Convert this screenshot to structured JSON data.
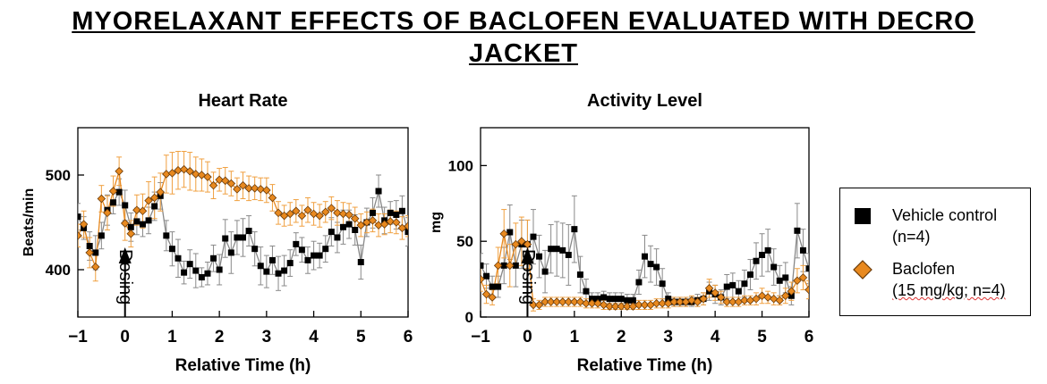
{
  "title_lines": [
    "MYORELAXANT EFFECTS OF BACLOFEN EVALUATED WITH DECRO",
    "JACKET"
  ],
  "legend": {
    "vehicle": {
      "line1": "Vehicle control",
      "line2": "(n=4)",
      "color": "#000000",
      "marker": "square"
    },
    "baclofen": {
      "line1": "Baclofen",
      "line2_a": "(15 mg/kg; n=4)",
      "color": "#e8891f",
      "marker": "diamond"
    }
  },
  "chart_data": [
    {
      "type": "line",
      "title": "Heart Rate",
      "xlabel": "Relative Time (h)",
      "ylabel": "Beats/min",
      "xlim": [
        -1,
        6
      ],
      "ylim": [
        350,
        550
      ],
      "xticks": [
        -1,
        0,
        1,
        2,
        3,
        4,
        5,
        6
      ],
      "yticks": [
        400,
        500
      ],
      "annotation": "Dosing",
      "annotation_x": 0,
      "x": [
        -1,
        -0.875,
        -0.75,
        -0.625,
        -0.5,
        -0.375,
        -0.25,
        -0.125,
        0,
        0.125,
        0.25,
        0.375,
        0.5,
        0.625,
        0.75,
        0.875,
        1,
        1.125,
        1.25,
        1.375,
        1.5,
        1.625,
        1.75,
        1.875,
        2,
        2.125,
        2.25,
        2.375,
        2.5,
        2.625,
        2.75,
        2.875,
        3,
        3.125,
        3.25,
        3.375,
        3.5,
        3.625,
        3.75,
        3.875,
        4,
        4.125,
        4.25,
        4.375,
        4.5,
        4.625,
        4.75,
        4.875,
        5,
        5.125,
        5.25,
        5.375,
        5.5,
        5.625,
        5.75,
        5.875,
        6
      ],
      "series": [
        {
          "name": "Vehicle control",
          "color": "#000000",
          "marker": "square",
          "values": [
            456,
            444,
            425,
            418,
            436,
            463,
            471,
            482,
            468,
            445,
            451,
            448,
            452,
            467,
            478,
            436,
            422,
            412,
            397,
            406,
            399,
            392,
            396,
            412,
            400,
            433,
            418,
            434,
            434,
            441,
            422,
            404,
            398,
            410,
            396,
            399,
            407,
            427,
            421,
            410,
            415,
            415,
            422,
            440,
            434,
            445,
            448,
            442,
            408,
            450,
            460,
            483,
            452,
            460,
            458,
            462,
            440
          ],
          "errors": [
            14,
            12,
            15,
            18,
            14,
            16,
            12,
            14,
            16,
            15,
            14,
            13,
            14,
            15,
            14,
            16,
            18,
            20,
            12,
            15,
            18,
            10,
            12,
            14,
            16,
            20,
            22,
            18,
            20,
            16,
            18,
            20,
            17,
            15,
            18,
            16,
            14,
            12,
            13,
            14,
            15,
            13,
            14,
            15,
            16,
            18,
            15,
            16,
            18,
            15,
            16,
            17,
            14,
            12,
            15,
            16,
            15
          ]
        },
        {
          "name": "Baclofen",
          "color": "#e8891f",
          "marker": "diamond",
          "values": [
            436,
            448,
            418,
            403,
            475,
            460,
            483,
            504,
            449,
            438,
            463,
            462,
            473,
            476,
            482,
            501,
            502,
            505,
            506,
            504,
            501,
            500,
            498,
            489,
            495,
            494,
            491,
            485,
            489,
            486,
            486,
            485,
            484,
            476,
            460,
            457,
            459,
            462,
            457,
            463,
            459,
            457,
            461,
            465,
            460,
            459,
            458,
            454,
            447,
            450,
            452,
            447,
            448,
            451,
            450,
            444,
            446
          ],
          "errors": [
            12,
            14,
            16,
            15,
            14,
            18,
            16,
            15,
            18,
            14,
            16,
            18,
            20,
            22,
            20,
            20,
            22,
            20,
            19,
            20,
            18,
            17,
            16,
            14,
            12,
            14,
            13,
            12,
            14,
            13,
            12,
            12,
            13,
            14,
            12,
            11,
            12,
            12,
            11,
            13,
            12,
            12,
            11,
            12,
            13,
            12,
            12,
            12,
            12,
            11,
            12,
            12,
            11,
            12,
            12,
            12,
            11
          ]
        }
      ]
    },
    {
      "type": "line",
      "title": "Activity Level",
      "xlabel": "Relative Time (h)",
      "ylabel": "mg",
      "xlim": [
        -1,
        6
      ],
      "ylim": [
        0,
        125
      ],
      "xticks": [
        -1,
        0,
        1,
        2,
        3,
        4,
        5,
        6
      ],
      "yticks": [
        0,
        50,
        100
      ],
      "annotation": "Dosing",
      "annotation_x": 0,
      "x": [
        -1,
        -0.875,
        -0.75,
        -0.625,
        -0.5,
        -0.375,
        -0.25,
        -0.125,
        0,
        0.125,
        0.25,
        0.375,
        0.5,
        0.625,
        0.75,
        0.875,
        1,
        1.125,
        1.25,
        1.375,
        1.5,
        1.625,
        1.75,
        1.875,
        2,
        2.125,
        2.25,
        2.375,
        2.5,
        2.625,
        2.75,
        2.875,
        3,
        3.125,
        3.25,
        3.375,
        3.5,
        3.625,
        3.75,
        3.875,
        4,
        4.125,
        4.25,
        4.375,
        4.5,
        4.625,
        4.75,
        4.875,
        5,
        5.125,
        5.25,
        5.375,
        5.5,
        5.625,
        5.75,
        5.875,
        6
      ],
      "series": [
        {
          "name": "Vehicle control",
          "color": "#000000",
          "marker": "square",
          "values": [
            34,
            27,
            20,
            20,
            34,
            56,
            34,
            48,
            48,
            53,
            40,
            30,
            45,
            45,
            44,
            41,
            58,
            28,
            17,
            12,
            12,
            13,
            12,
            12,
            12,
            11,
            11,
            23,
            40,
            35,
            33,
            22,
            12,
            10,
            10,
            10,
            10,
            11,
            12,
            17,
            15,
            13,
            20,
            21,
            17,
            22,
            28,
            37,
            41,
            44,
            33,
            24,
            26,
            14,
            57,
            44,
            32
          ],
          "errors": [
            8,
            8,
            7,
            7,
            12,
            18,
            14,
            16,
            16,
            18,
            14,
            14,
            16,
            18,
            18,
            20,
            22,
            12,
            8,
            4,
            4,
            4,
            4,
            4,
            4,
            4,
            4,
            8,
            14,
            12,
            12,
            10,
            4,
            3,
            3,
            3,
            3,
            4,
            4,
            6,
            6,
            5,
            8,
            8,
            7,
            9,
            10,
            12,
            14,
            14,
            12,
            10,
            10,
            6,
            18,
            14,
            10
          ]
        },
        {
          "name": "Baclofen",
          "color": "#e8891f",
          "marker": "diamond",
          "values": [
            25,
            15,
            13,
            34,
            55,
            34,
            48,
            50,
            48,
            8,
            8,
            10,
            10,
            10,
            10,
            10,
            10,
            10,
            9,
            9,
            9,
            8,
            7,
            7,
            7,
            7,
            7,
            8,
            8,
            8,
            9,
            9,
            9,
            10,
            10,
            10,
            11,
            10,
            12,
            19,
            16,
            13,
            10,
            10,
            10,
            11,
            11,
            12,
            14,
            13,
            12,
            11,
            14,
            17,
            24,
            26,
            18
          ],
          "errors": [
            8,
            6,
            5,
            12,
            16,
            14,
            14,
            16,
            16,
            4,
            3,
            3,
            3,
            3,
            3,
            3,
            3,
            3,
            3,
            3,
            3,
            3,
            2,
            2,
            2,
            2,
            2,
            3,
            3,
            3,
            3,
            3,
            3,
            3,
            3,
            3,
            3,
            3,
            4,
            6,
            5,
            4,
            3,
            3,
            3,
            3,
            3,
            4,
            5,
            4,
            4,
            3,
            5,
            6,
            8,
            8,
            6
          ]
        }
      ]
    }
  ]
}
